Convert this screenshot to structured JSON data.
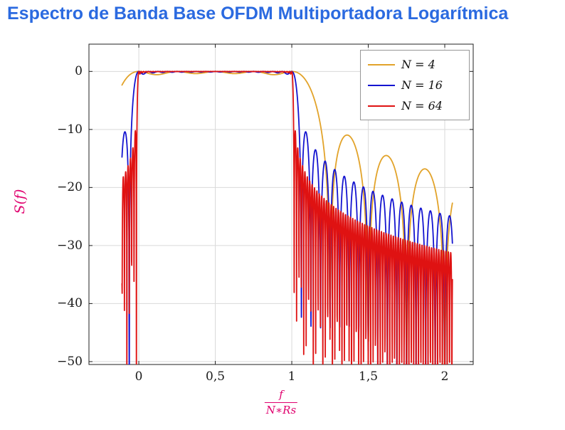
{
  "title": {
    "text": "Espectro de Banda Base OFDM Multiportadora Logarítmica",
    "color": "#2b6ae0"
  },
  "chart_data": {
    "type": "line",
    "title": "Espectro de Banda Base OFDM Multiportadora Logarítmica",
    "ylabel": "S(f)",
    "xlabel": "f/(N*Rs)",
    "xlabel_num": "f",
    "xlabel_den": "N∗Rs",
    "axis_label_color": "#e0006e",
    "xlim": [
      -0.326,
      2.186
    ],
    "ylim": [
      -50.5,
      4.7
    ],
    "xticks": [
      {
        "v": 0,
        "label": "0"
      },
      {
        "v": 0.5,
        "label": "0,5"
      },
      {
        "v": 1,
        "label": "1"
      },
      {
        "v": 1.5,
        "label": "1,5"
      },
      {
        "v": 2,
        "label": "2"
      }
    ],
    "yticks": [
      {
        "v": 0,
        "label": "0"
      },
      {
        "v": -10,
        "label": "−10"
      },
      {
        "v": -20,
        "label": "−20"
      },
      {
        "v": -30,
        "label": "−30"
      },
      {
        "v": -40,
        "label": "−40"
      },
      {
        "v": -50,
        "label": "−50"
      }
    ],
    "grid": true,
    "grid_color": "#d9d9d9",
    "frame_color": "#222222",
    "legend_position": "top-right",
    "line_width": 1.8,
    "domain": [
      -0.11,
      2.05
    ],
    "model": "S_N(f) = sum_{k=0}^{N} sinc^2(N*f - k) with sinc(t)=sin(pi t)/(pi t); curve plotted as 10*log10(S) in dB versus normalized frequency f/(N*Rs)",
    "series": [
      {
        "label": "N = 4",
        "N": 4,
        "color": "#e2a32a",
        "samples": 520
      },
      {
        "label": "N = 16",
        "N": 16,
        "color": "#1414d0",
        "samples": 1000
      },
      {
        "label": "N = 64",
        "N": 64,
        "color": "#df1212",
        "samples": 1900
      }
    ],
    "readings": {
      "passband_range_normalized": [
        0,
        1
      ],
      "passband_level_dB": 0,
      "first_sidelobe_dB": -12,
      "sidelobe_spacing_normalized": "1/N",
      "envelope_at_f_2_dB": {
        "N4": -23,
        "N16": -24,
        "N64": -30
      },
      "deepest_nulls_dB": "below -50 (clipped by axis)"
    }
  }
}
